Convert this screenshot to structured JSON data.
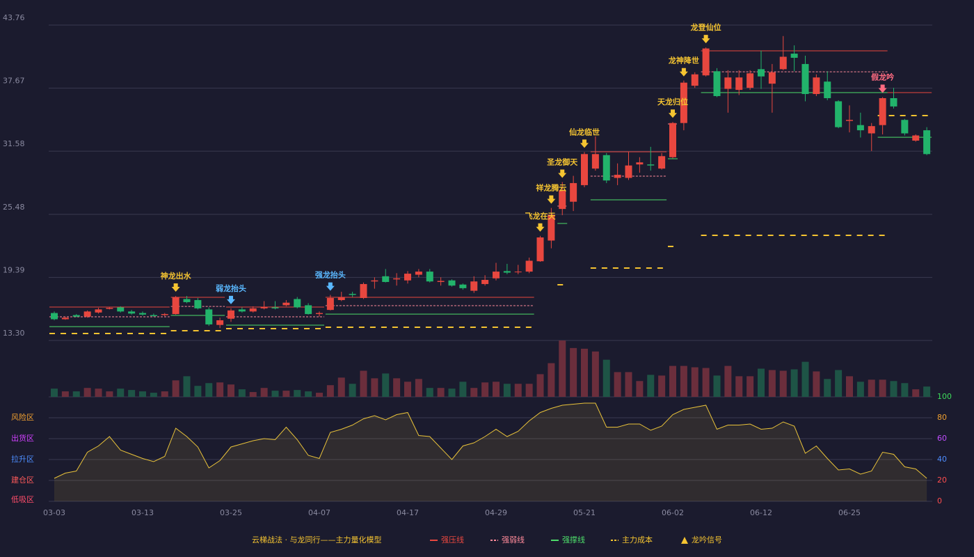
{
  "chart_data": {
    "type": "candlestick",
    "model_title": "云梯战法 · 与龙同行——主力量化模型",
    "categories": [
      "03-03",
      null,
      null,
      null,
      null,
      null,
      null,
      null,
      "03-13",
      null,
      null,
      null,
      null,
      null,
      null,
      null,
      "03-25",
      null,
      null,
      null,
      null,
      null,
      null,
      null,
      "04-07",
      null,
      null,
      null,
      null,
      null,
      null,
      null,
      "04-17",
      null,
      null,
      null,
      null,
      null,
      null,
      null,
      "04-29",
      null,
      null,
      null,
      null,
      null,
      null,
      null,
      "05-21",
      null,
      null,
      null,
      null,
      null,
      null,
      null,
      "06-02",
      null,
      null,
      null,
      null,
      null,
      null,
      null,
      "06-12",
      null,
      null,
      null,
      null,
      null,
      null,
      null,
      "06-25",
      null,
      null,
      null,
      null,
      null,
      null,
      null
    ],
    "open": [
      15.95,
      15.35,
      15.75,
      15.6,
      16.0,
      16.35,
      16.5,
      16.1,
      15.95,
      15.75,
      15.75,
      15.85,
      17.3,
      17.2,
      16.3,
      14.8,
      15.4,
      16.3,
      16.1,
      16.4,
      16.5,
      16.7,
      17.3,
      16.7,
      15.85,
      16.25,
      17.2,
      17.8,
      17.4,
      19.0,
      19.5,
      19.2,
      19.1,
      19.65,
      19.95,
      18.95,
      19.1,
      18.7,
      18.1,
      18.75,
      19.3,
      20.0,
      19.9,
      19.95,
      20.95,
      22.95,
      26.0,
      26.7,
      28.3,
      29.9,
      31.2,
      29.0,
      29.0,
      30.3,
      30.3,
      29.9,
      31.0,
      34.3,
      37.9,
      38.9,
      39.3,
      37.6,
      37.5,
      37.7,
      39.5,
      38.1,
      39.5,
      41.0,
      40.0,
      37.1,
      38.3,
      36.4,
      34.5,
      34.1,
      33.3,
      34.1,
      36.7,
      34.6,
      32.6,
      33.6
    ],
    "high": [
      16.1,
      15.6,
      15.85,
      16.2,
      16.45,
      16.55,
      16.6,
      16.25,
      16.1,
      15.9,
      15.95,
      17.6,
      17.6,
      17.4,
      16.5,
      15.5,
      16.4,
      16.5,
      16.6,
      17.1,
      17.1,
      17.2,
      17.5,
      16.9,
      16.1,
      17.7,
      18.0,
      18.0,
      18.9,
      19.4,
      20.2,
      19.8,
      20.0,
      20.2,
      20.2,
      19.4,
      19.2,
      18.8,
      19.5,
      19.6,
      20.8,
      20.7,
      20.6,
      21.3,
      23.4,
      26.1,
      28.6,
      29.2,
      31.5,
      33.0,
      31.4,
      30.4,
      31.5,
      31.0,
      32.0,
      31.4,
      34.4,
      38.4,
      39.2,
      41.6,
      39.6,
      39.4,
      39.4,
      39.4,
      41.3,
      40.0,
      42.7,
      41.8,
      40.8,
      39.0,
      39.3,
      36.5,
      36.0,
      35.3,
      34.3,
      36.8,
      37.7,
      34.7,
      33.2,
      33.9
    ],
    "low": [
      15.25,
      15.3,
      15.55,
      15.5,
      15.9,
      16.3,
      16.0,
      15.8,
      15.7,
      15.6,
      15.65,
      15.8,
      16.9,
      16.3,
      14.7,
      14.5,
      15.1,
      16.0,
      16.0,
      16.3,
      16.3,
      16.6,
      16.4,
      15.8,
      15.6,
      16.2,
      17.1,
      17.5,
      17.3,
      18.3,
      18.9,
      18.6,
      18.8,
      19.4,
      18.9,
      18.6,
      18.5,
      18.2,
      17.9,
      18.6,
      19.1,
      19.7,
      19.7,
      19.8,
      20.9,
      22.2,
      25.4,
      25.8,
      28.1,
      29.7,
      28.5,
      28.3,
      28.8,
      29.5,
      29.7,
      29.8,
      30.9,
      33.6,
      37.7,
      38.8,
      36.8,
      35.3,
      37.0,
      37.5,
      37.6,
      35.3,
      39.4,
      39.3,
      36.4,
      36.9,
      36.5,
      33.8,
      33.4,
      32.9,
      31.6,
      33.2,
      35.7,
      33.1,
      32.5,
      31.2
    ],
    "close": [
      15.35,
      15.5,
      15.6,
      16.1,
      16.3,
      16.45,
      16.1,
      15.9,
      15.8,
      15.65,
      15.85,
      17.45,
      17.0,
      16.4,
      14.85,
      15.25,
      16.2,
      16.1,
      16.4,
      16.5,
      16.4,
      16.95,
      16.5,
      15.85,
      15.95,
      17.4,
      17.5,
      17.7,
      18.75,
      19.1,
      18.95,
      19.3,
      19.75,
      19.95,
      19.0,
      19.05,
      18.6,
      18.35,
      19.0,
      19.15,
      19.95,
      19.85,
      19.95,
      21.0,
      23.25,
      25.45,
      27.8,
      28.5,
      31.3,
      31.3,
      28.75,
      29.3,
      30.2,
      30.5,
      30.2,
      31.1,
      34.3,
      38.2,
      39.0,
      41.5,
      36.9,
      38.7,
      38.7,
      39.1,
      38.8,
      39.2,
      40.7,
      40.6,
      37.1,
      38.7,
      36.7,
      33.9,
      34.6,
      33.6,
      34.0,
      36.7,
      35.9,
      33.3,
      33.1,
      31.3
    ],
    "up_color": "#e8473f",
    "down_color": "#22b36b",
    "ylim": [
      13.3,
      43.76
    ],
    "yticks": [
      {
        "value": 13.3,
        "label": "13.30"
      },
      19.39,
      25.48,
      31.58,
      37.67,
      43.76
    ],
    "grid": true,
    "volume": {
      "up_color": "#6b2e3c",
      "down_color": "#1e5446",
      "values": [
        12,
        8,
        8,
        13,
        12,
        8,
        12,
        10,
        8,
        6,
        8,
        24,
        30,
        16,
        20,
        21,
        18,
        11,
        7,
        13,
        9,
        9,
        10,
        8,
        6,
        17,
        28,
        19,
        38,
        27,
        34,
        27,
        22,
        26,
        13,
        13,
        12,
        22,
        13,
        21,
        22,
        19,
        19,
        19,
        33,
        49,
        82,
        71,
        70,
        66,
        54,
        36,
        36,
        23,
        32,
        31,
        45,
        45,
        43,
        42,
        31,
        45,
        30,
        30,
        41,
        39,
        38,
        40,
        51,
        37,
        26,
        39,
        30,
        22,
        25,
        25,
        23,
        20,
        11,
        15
      ]
    },
    "oscillator": {
      "color": "#e8c23a",
      "values": [
        22,
        27,
        29,
        47,
        53,
        62,
        49,
        45,
        41,
        38,
        43,
        70,
        62,
        52,
        32,
        39,
        52,
        55,
        58,
        60,
        59,
        71,
        59,
        44,
        41,
        66,
        69,
        73,
        79,
        82,
        78,
        83,
        85,
        63,
        62,
        51,
        40,
        53,
        56,
        62,
        69,
        62,
        67,
        77,
        85,
        89,
        92,
        93,
        94,
        94,
        71,
        71,
        74,
        74,
        68,
        72,
        83,
        88,
        90,
        92,
        69,
        73,
        73,
        74,
        69,
        70,
        76,
        72,
        46,
        53,
        41,
        30,
        31,
        26,
        29,
        47,
        45,
        33,
        31,
        22
      ],
      "ylim": [
        0,
        100
      ],
      "yticks": [
        0,
        20,
        40,
        60,
        80,
        100
      ],
      "ytick_colors": [
        "#ff4d4f",
        "#ff4d4f",
        "#4d8dff",
        "#c04dff",
        "#f0a030",
        "#3ddc5a"
      ],
      "zones": [
        {
          "label": "风险区",
          "value": 80,
          "color": "#f0a030"
        },
        {
          "label": "出货区",
          "value": 60,
          "color": "#d040ff"
        },
        {
          "label": "拉升区",
          "value": 40,
          "color": "#4d8dff"
        },
        {
          "label": "建仓区",
          "value": 20,
          "color": "#ff5a5a"
        },
        {
          "label": "低吸区",
          "value": 0,
          "color": "#ff4d6a"
        }
      ]
    },
    "levels": [
      {
        "name": "强压线",
        "color": "#e8473f",
        "dash": false,
        "segments": [
          {
            "start": 0,
            "end": 10,
            "value": 16.53
          },
          {
            "start": 11,
            "end": 15,
            "value": 17.47
          },
          {
            "start": 16,
            "end": 24,
            "value": 16.53
          },
          {
            "start": 25,
            "end": 43,
            "value": 17.47
          },
          {
            "start": 49,
            "end": 55,
            "value": 31.52
          },
          {
            "start": 59,
            "end": 75,
            "value": 41.27
          },
          {
            "start": 75,
            "end": 79,
            "value": 37.24
          }
        ]
      },
      {
        "name": "强弱线",
        "color": "#ff8a9a",
        "dash": true,
        "segments": [
          {
            "start": 0,
            "end": 10,
            "value": 15.59
          },
          {
            "start": 11,
            "end": 15,
            "value": 16.59
          },
          {
            "start": 16,
            "end": 24,
            "value": 15.59
          },
          {
            "start": 25,
            "end": 43,
            "value": 16.66
          },
          {
            "start": 46,
            "end": 46,
            "value": 26.28
          },
          {
            "start": 49,
            "end": 55,
            "value": 29.17
          },
          {
            "start": 56,
            "end": 56,
            "value": 34.21
          },
          {
            "start": 59,
            "end": 75,
            "value": 39.25
          }
        ]
      },
      {
        "name": "强撑线",
        "color": "#4ddc6a",
        "dash": false,
        "segments": [
          {
            "start": 0,
            "end": 10,
            "value": 14.64
          },
          {
            "start": 11,
            "end": 15,
            "value": 15.72
          },
          {
            "start": 16,
            "end": 24,
            "value": 14.78
          },
          {
            "start": 25,
            "end": 43,
            "value": 15.85
          },
          {
            "start": 46,
            "end": 46,
            "value": 24.6
          },
          {
            "start": 49,
            "end": 55,
            "value": 26.88
          },
          {
            "start": 56,
            "end": 56,
            "value": 30.85
          },
          {
            "start": 59,
            "end": 75,
            "value": 37.24
          },
          {
            "start": 75,
            "end": 79,
            "value": 32.93
          }
        ]
      },
      {
        "name": "主力成本",
        "color": "#f5c431",
        "dash": true,
        "segments": [
          {
            "start": 0,
            "end": 10,
            "value": 13.97
          },
          {
            "start": 11,
            "end": 15,
            "value": 14.24
          },
          {
            "start": 16,
            "end": 24,
            "value": 14.44
          },
          {
            "start": 25,
            "end": 43,
            "value": 14.58
          },
          {
            "start": 46,
            "end": 46,
            "value": 18.68
          },
          {
            "start": 49,
            "end": 55,
            "value": 20.29
          },
          {
            "start": 56,
            "end": 56,
            "value": 22.38
          },
          {
            "start": 59,
            "end": 75,
            "value": 23.45
          },
          {
            "start": 75,
            "end": 79,
            "value": 35.02
          }
        ]
      }
    ],
    "signals": {
      "name": "龙吟信号",
      "color": "#f5c431",
      "items": [
        {
          "index": 11,
          "label": "神龙出水",
          "color": "#f5c431"
        },
        {
          "index": 16,
          "label": "弱龙抬头",
          "color": "#5ab8ff"
        },
        {
          "index": 25,
          "label": "强龙抬头",
          "color": "#5ab8ff"
        },
        {
          "index": 44,
          "label": "飞龙在天",
          "color": "#f5c431"
        },
        {
          "index": 45,
          "label": "祥龙腾云",
          "color": "#f5c431"
        },
        {
          "index": 46,
          "label": "圣龙御天",
          "color": "#f5c431"
        },
        {
          "index": 48,
          "label": "仙龙临世",
          "color": "#f5c431"
        },
        {
          "index": 56,
          "label": "天龙归位",
          "color": "#f5c431"
        },
        {
          "index": 57,
          "label": "龙神降世",
          "color": "#f5c431"
        },
        {
          "index": 59,
          "label": "龙登仙位",
          "color": "#f5c431"
        },
        {
          "index": 75,
          "label": "假龙吟",
          "color": "#ff6b81"
        }
      ]
    }
  }
}
